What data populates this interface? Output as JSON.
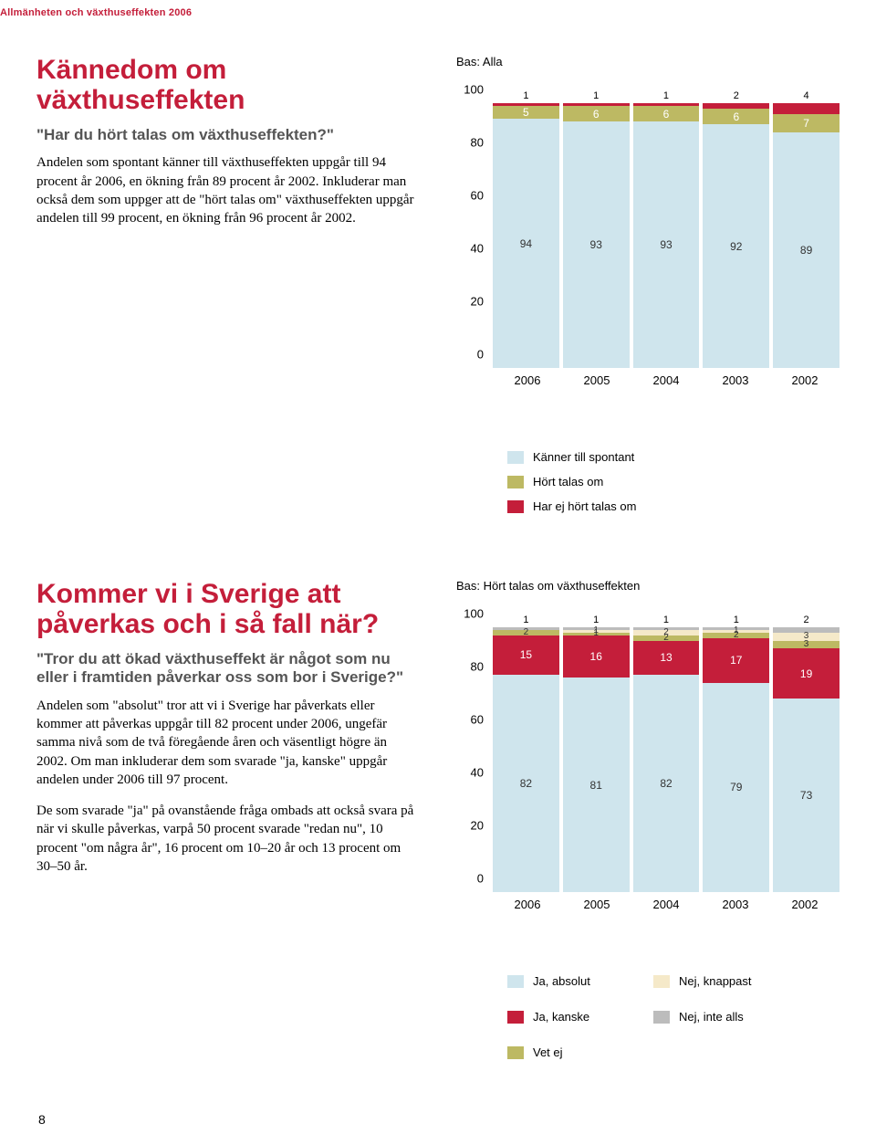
{
  "header_strip": "Allmänheten och växthuseffekten 2006",
  "page_number": "8",
  "section1": {
    "title": "Kännedom om växthuseffekten",
    "subtitle": "\"Har du hört talas om växthuseffekten?\"",
    "body": "Andelen som spontant känner till växthuseffekten uppgår till 94 procent år 2006, en ökning från 89 procent år 2002. Inkluderar man också dem som uppger att de \"hört talas om\" växthuseffekten uppgår andelen till 99 procent, en ökning från 96 procent år 2002."
  },
  "chart1": {
    "type": "stacked-bar",
    "base_label": "Bas: Alla",
    "ylim": [
      0,
      100
    ],
    "ytick_step": 20,
    "yticks": [
      "0",
      "20",
      "40",
      "60",
      "80",
      "100"
    ],
    "categories": [
      "2006",
      "2005",
      "2004",
      "2003",
      "2002"
    ],
    "series": [
      {
        "label": "Känner till spontant",
        "color": "#cfe5ed",
        "text_color": "#333",
        "values": [
          94,
          93,
          93,
          92,
          89
        ]
      },
      {
        "label": "Hört talas om",
        "color": "#bdb963",
        "text_color": "#fff",
        "values": [
          5,
          6,
          6,
          6,
          7
        ]
      },
      {
        "label": "Har ej hört talas om",
        "color": "#c41e3a",
        "text_color": "#fff",
        "values": [
          1,
          1,
          1,
          2,
          4
        ],
        "label_above": true
      }
    ]
  },
  "section2": {
    "title": "Kommer vi i Sverige att påverkas och i så fall när?",
    "subtitle": "\"Tror du att ökad växthuseffekt är något som nu eller i framtiden påverkar oss som bor i Sverige?\"",
    "body1": "Andelen som \"absolut\" tror att vi i Sverige har påverkats eller kommer att påverkas uppgår till 82 procent under 2006, ungefär samma nivå som de två föregående åren och väsentligt högre än 2002. Om man inkluderar dem som svarade \"ja, kanske\" uppgår andelen under 2006 till 97 procent.",
    "body2": "De som svarade \"ja\" på ovanstående fråga ombads att också svara på när vi skulle påverkas, varpå 50 procent svarade \"redan nu\", 10 procent \"om några år\", 16 procent om 10–20 år och 13 procent om 30–50 år."
  },
  "chart2": {
    "type": "stacked-bar",
    "base_label": "Bas: Hört talas om växthuseffekten",
    "ylim": [
      0,
      100
    ],
    "ytick_step": 20,
    "yticks": [
      "0",
      "20",
      "40",
      "60",
      "80",
      "100"
    ],
    "categories": [
      "2006",
      "2005",
      "2004",
      "2003",
      "2002"
    ],
    "series": [
      {
        "label": "Ja, absolut",
        "color": "#cfe5ed",
        "text_color": "#333",
        "values": [
          82,
          81,
          82,
          79,
          73
        ]
      },
      {
        "label": "Ja, kanske",
        "color": "#c41e3a",
        "text_color": "#fff",
        "values": [
          15,
          16,
          13,
          17,
          19
        ]
      },
      {
        "label": "Vet ej",
        "color": "#bdb963",
        "text_color": "#333",
        "values": [
          2,
          1,
          2,
          2,
          3
        ]
      },
      {
        "label": "Nej, knappast",
        "color": "#f5e9c9",
        "text_color": "#333",
        "values": [
          0,
          1,
          2,
          1,
          3
        ]
      },
      {
        "label": "Nej, inte alls",
        "color": "#bcbcbc",
        "text_color": "#333",
        "values": [
          1,
          1,
          1,
          1,
          2
        ],
        "label_above": true
      }
    ],
    "legend_layout": [
      [
        "Ja, absolut",
        "Nej, knappast"
      ],
      [
        "Ja, kanske",
        "Nej, inte alls"
      ],
      [
        "Vet ej",
        null
      ]
    ],
    "legend_colors": {
      "Ja, absolut": "#cfe5ed",
      "Ja, kanske": "#c41e3a",
      "Vet ej": "#bdb963",
      "Nej, knappast": "#f5e9c9",
      "Nej, inte alls": "#bcbcbc"
    }
  }
}
